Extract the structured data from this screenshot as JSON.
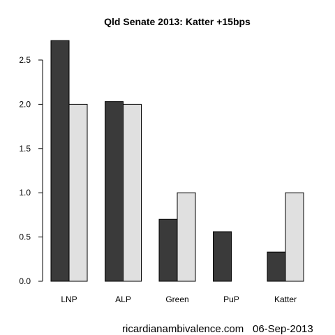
{
  "chart_data": {
    "type": "bar",
    "title": "Qld Senate 2013: Katter +15bps",
    "xlabel": "",
    "ylabel": "",
    "categories": [
      "LNP",
      "ALP",
      "Green",
      "PuP",
      "Katter"
    ],
    "series": [
      {
        "color": "#3a3a3a",
        "values": [
          2.72,
          2.03,
          0.7,
          0.56,
          0.33
        ]
      },
      {
        "color": "#e0e0e0",
        "values": [
          2.0,
          2.0,
          1.0,
          0.0,
          1.0
        ]
      }
    ],
    "ylim": [
      0,
      2.75
    ],
    "yticks": [
      "0.0",
      "0.5",
      "1.0",
      "1.5",
      "2.0",
      "2.5"
    ],
    "grid": false,
    "legend": "none"
  },
  "footer": {
    "source": "ricardianambivalence.com",
    "date": "06-Sep-2013"
  }
}
